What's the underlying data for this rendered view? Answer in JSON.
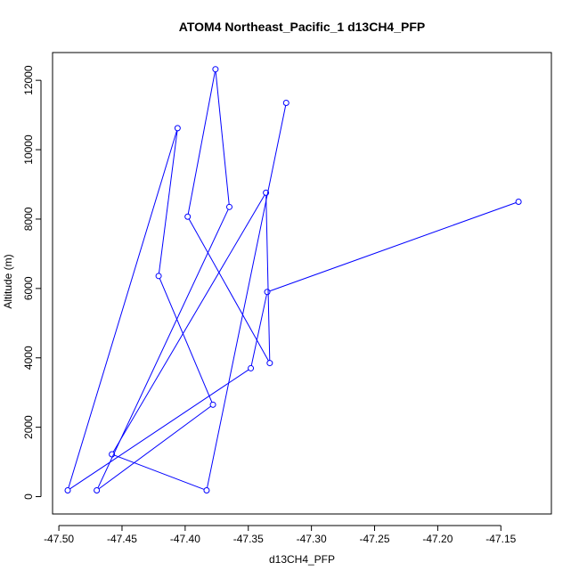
{
  "chart_data": {
    "type": "line",
    "title": "ATOM4 Northeast_Pacific_1 d13CH4_PFP",
    "xlabel": "d13CH4_PFP",
    "ylabel": "Altitude (m)",
    "xlim": [
      -47.505,
      -47.11
    ],
    "ylim": [
      -500,
      12800
    ],
    "x_ticks": [
      -47.5,
      -47.45,
      -47.4,
      -47.35,
      -47.3,
      -47.25,
      -47.2,
      -47.15
    ],
    "x_tick_labels": [
      "-47.50",
      "-47.45",
      "-47.40",
      "-47.35",
      "-47.30",
      "-47.25",
      "-47.20",
      "-47.15"
    ],
    "y_ticks": [
      0,
      2000,
      4000,
      6000,
      8000,
      10000,
      12000
    ],
    "y_tick_labels": [
      "0",
      "2000",
      "4000",
      "6000",
      "8000",
      "10000",
      "12000"
    ],
    "grid": false,
    "legend": "none",
    "series": [
      {
        "color": "#0000ff",
        "marker": "open-circle",
        "points": [
          {
            "x": -47.136,
            "y": 8500
          },
          {
            "x": -47.335,
            "y": 5900
          },
          {
            "x": -47.348,
            "y": 3700
          },
          {
            "x": -47.493,
            "y": 180
          },
          {
            "x": -47.406,
            "y": 10620
          },
          {
            "x": -47.421,
            "y": 6360
          },
          {
            "x": -47.378,
            "y": 2650
          },
          {
            "x": -47.47,
            "y": 180
          },
          {
            "x": -47.365,
            "y": 8350
          },
          {
            "x": -47.376,
            "y": 12320
          },
          {
            "x": -47.398,
            "y": 8070
          },
          {
            "x": -47.333,
            "y": 3850
          },
          {
            "x": -47.336,
            "y": 8760
          },
          {
            "x": -47.458,
            "y": 1220
          },
          {
            "x": -47.383,
            "y": 180
          },
          {
            "x": -47.32,
            "y": 11350
          }
        ]
      }
    ]
  }
}
